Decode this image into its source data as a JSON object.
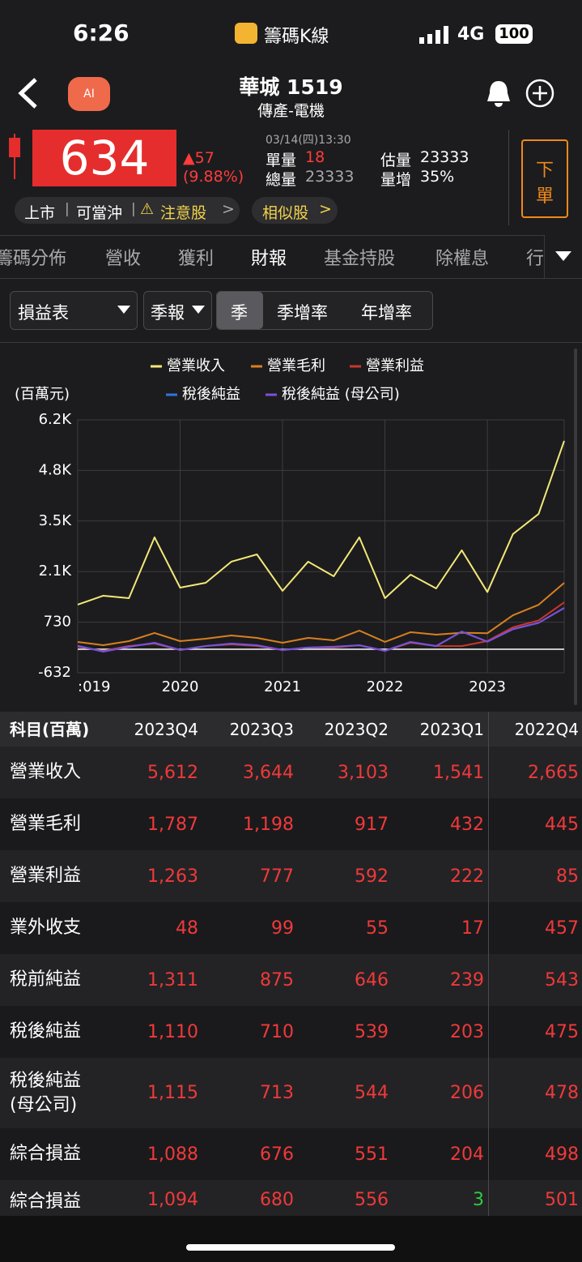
{
  "status_bar": {
    "time": "6:26",
    "app": "籌碼K線",
    "network": "4G",
    "battery": "100"
  },
  "header": {
    "title": "華城 1519",
    "subtitle": "傳產-電機"
  },
  "quote": {
    "price": "634",
    "change": "▲57",
    "change_pct": "(9.88%)",
    "datetime": "03/14(四)13:30",
    "fields": [
      {
        "label": "單量",
        "value": "18"
      },
      {
        "label": "總量",
        "value": "23333"
      },
      {
        "label": "估量",
        "value": "23333"
      },
      {
        "label": "量增",
        "value": "35%"
      }
    ],
    "order_button": [
      "下",
      "單"
    ]
  },
  "tags": [
    "上市",
    "可當沖",
    "注意股"
  ],
  "similar": "相似股",
  "tabs": [
    "籌碼分佈",
    "營收",
    "獲利",
    "財報",
    "基金持股",
    "除權息",
    "行"
  ],
  "controls": {
    "statement": "損益表",
    "period": "季報",
    "modes": [
      "季",
      "季增率",
      "年增率"
    ]
  },
  "chart_data": {
    "type": "line",
    "y_label": "(百萬元)",
    "x": [
      2019,
      2019.25,
      2019.5,
      2019.75,
      2020,
      2020.25,
      2020.5,
      2020.75,
      2021,
      2021.25,
      2021.5,
      2021.75,
      2022,
      2022.25,
      2022.5,
      2022.75,
      2023,
      2023.25,
      2023.5,
      2023.75
    ],
    "xlim": [
      2019,
      2023.75
    ],
    "xticks": [
      {
        "value": 2019,
        "label": ":019"
      },
      2020,
      2021,
      2022,
      2023
    ],
    "ylim": [
      -632,
      6178
    ],
    "yticks": [
      -632,
      730,
      {
        "value": 2092,
        "label": "2.1K"
      },
      {
        "value": 3454,
        "label": "3.5K"
      },
      {
        "value": 4816,
        "label": "4.8K"
      },
      {
        "value": 6178,
        "label": "6.2K"
      }
    ],
    "grid": true,
    "series": [
      {
        "name": "營業收入",
        "color": "#f3e878",
        "values": [
          1202,
          1442,
          1376,
          3014,
          1660,
          1791,
          2359,
          2555,
          1573,
          2359,
          1966,
          3014,
          1376,
          2009,
          1638,
          2665,
          1541,
          3103,
          3644,
          5612
        ]
      },
      {
        "name": "營業毛利",
        "color": "#d9801f",
        "values": [
          198,
          110,
          219,
          438,
          219,
          285,
          372,
          307,
          176,
          307,
          241,
          503,
          198,
          460,
          394,
          445,
          432,
          917,
          1198,
          1787
        ]
      },
      {
        "name": "營業利益",
        "color": "#c8372d",
        "values": [
          67,
          -43,
          88,
          154,
          -21,
          88,
          132,
          88,
          -21,
          45,
          45,
          110,
          -43,
          176,
          88,
          85,
          222,
          592,
          777,
          1263
        ]
      },
      {
        "name": "稅後純益",
        "color": "#2f74e0",
        "values": [
          95,
          -58,
          70,
          170,
          -18,
          85,
          150,
          105,
          -18,
          48,
          70,
          105,
          -40,
          195,
          85,
          475,
          203,
          539,
          710,
          1110
        ]
      },
      {
        "name": "稅後純益 (母公司)",
        "color": "#7d4fd6",
        "values": [
          88,
          -64,
          67,
          176,
          -21,
          88,
          154,
          110,
          -21,
          45,
          67,
          110,
          -43,
          198,
          88,
          478,
          206,
          544,
          713,
          1115
        ]
      }
    ]
  },
  "table": {
    "header": [
      "科目(百萬)",
      "2023Q4",
      "2023Q3",
      "2023Q2",
      "2023Q1",
      "2022Q4"
    ],
    "rows": [
      [
        "營業收入",
        "5,612",
        "3,644",
        "3,103",
        "1,541",
        "2,665"
      ],
      [
        "營業毛利",
        "1,787",
        "1,198",
        "917",
        "432",
        "445"
      ],
      [
        "營業利益",
        "1,263",
        "777",
        "592",
        "222",
        "85"
      ],
      [
        "業外收支",
        "48",
        "99",
        "55",
        "17",
        "457"
      ],
      [
        "稅前純益",
        "1,311",
        "875",
        "646",
        "239",
        "543"
      ],
      [
        "稅後純益",
        "1,110",
        "710",
        "539",
        "203",
        "475"
      ],
      [
        "稅後純益\n(母公司)",
        "1,115",
        "713",
        "544",
        "206",
        "478"
      ],
      [
        "綜合損益",
        "1,088",
        "676",
        "551",
        "204",
        "498"
      ],
      [
        "綜合損益",
        "1,094",
        "680",
        "556",
        "3",
        "501"
      ]
    ]
  }
}
